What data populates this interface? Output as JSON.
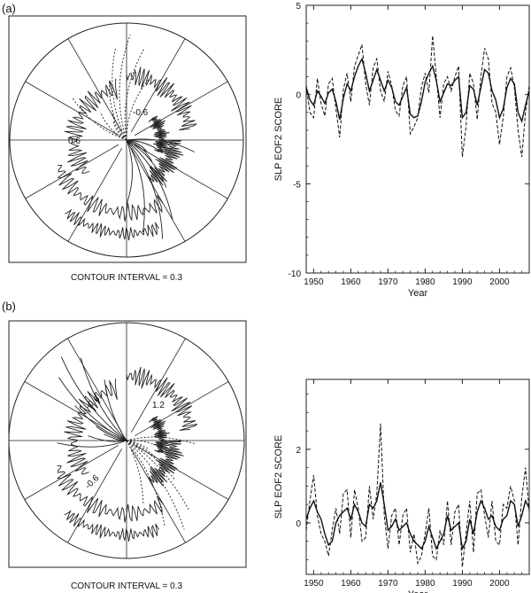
{
  "panels": [
    {
      "label": "(a)",
      "map": {
        "caption": "CONTOUR INTERVAL = 0.3",
        "contour_labels": [
          "0.6",
          "-0.6"
        ]
      },
      "chart_data": {
        "type": "line",
        "xlabel": "Year",
        "ylabel": "SLP EOF2 SCORE",
        "xlim": [
          1948,
          2008
        ],
        "ylim": [
          -10,
          5
        ],
        "xticks": [
          1950,
          1960,
          1970,
          1980,
          1990,
          2000
        ],
        "yticks": [
          -10,
          -5,
          0,
          5
        ],
        "series": [
          {
            "style": "solid",
            "x": [
              1948,
              1949,
              1950,
              1951,
              1952,
              1953,
              1954,
              1955,
              1956,
              1957,
              1958,
              1959,
              1960,
              1961,
              1962,
              1963,
              1964,
              1965,
              1966,
              1967,
              1968,
              1969,
              1970,
              1971,
              1972,
              1973,
              1974,
              1975,
              1976,
              1977,
              1978,
              1979,
              1980,
              1981,
              1982,
              1983,
              1984,
              1985,
              1986,
              1987,
              1988,
              1989,
              1990,
              1991,
              1992,
              1993,
              1994,
              1995,
              1996,
              1997,
              1998,
              1999,
              2000,
              2001,
              2002,
              2003,
              2004,
              2005,
              2006,
              2007,
              2008
            ],
            "y": [
              0.4,
              -0.3,
              -0.6,
              0.2,
              -0.1,
              -0.5,
              0.1,
              0.3,
              -0.4,
              -1.4,
              -0.2,
              0.6,
              0.2,
              1.0,
              1.6,
              2.0,
              1.2,
              0.2,
              0.8,
              1.4,
              0.8,
              0.2,
              0.8,
              0.4,
              -0.4,
              -0.6,
              -0.1,
              0.4,
              -1.1,
              -1.3,
              -1.2,
              -0.4,
              0.7,
              1.2,
              1.6,
              0.8,
              -0.4,
              0.1,
              0.6,
              0.5,
              0.8,
              1.0,
              -1.3,
              -1.0,
              0.5,
              0.3,
              -0.6,
              0.4,
              1.4,
              1.2,
              0.2,
              -0.3,
              -1.3,
              -0.8,
              0.4,
              0.9,
              0.6,
              -1.0,
              -1.5,
              -0.6,
              0.2
            ]
          },
          {
            "style": "dashed",
            "x": [
              1948,
              1949,
              1950,
              1951,
              1952,
              1953,
              1954,
              1955,
              1956,
              1957,
              1958,
              1959,
              1960,
              1961,
              1962,
              1963,
              1964,
              1965,
              1966,
              1967,
              1968,
              1969,
              1970,
              1971,
              1972,
              1973,
              1974,
              1975,
              1976,
              1977,
              1978,
              1979,
              1980,
              1981,
              1982,
              1983,
              1984,
              1985,
              1986,
              1987,
              1988,
              1989,
              1990,
              1991,
              1992,
              1993,
              1994,
              1995,
              1996,
              1997,
              1998,
              1999,
              2000,
              2001,
              2002,
              2003,
              2004,
              2005,
              2006,
              2007,
              2008
            ],
            "y": [
              0.5,
              -1.0,
              -1.3,
              0.9,
              -0.5,
              -1.2,
              0.6,
              0.9,
              -0.8,
              -2.4,
              0.3,
              1.2,
              -0.4,
              1.6,
              2.2,
              2.8,
              0.6,
              -0.6,
              1.5,
              2.0,
              0.2,
              -0.4,
              1.3,
              0.5,
              -0.9,
              -1.2,
              0.5,
              1.0,
              -2.2,
              -1.8,
              -1.3,
              0.4,
              1.2,
              0.1,
              3.3,
              1.0,
              -1.3,
              0.6,
              1.0,
              0.2,
              1.0,
              1.6,
              -3.5,
              -1.8,
              1.2,
              0.6,
              -1.4,
              1.0,
              2.6,
              2.0,
              -0.5,
              -1.0,
              -2.8,
              -1.3,
              1.0,
              1.5,
              0.4,
              -2.0,
              -3.5,
              -1.0,
              0.5
            ]
          }
        ]
      }
    },
    {
      "label": "(b)",
      "map": {
        "caption": "CONTOUR INTERVAL = 0.3",
        "contour_labels": [
          "-0.6",
          "-0.6",
          "1.2"
        ]
      },
      "chart_data": {
        "type": "line",
        "xlabel": "Year",
        "ylabel": "SLP EOF2 SCORE",
        "xlim": [
          1948,
          2008
        ],
        "ylim": [
          -1.4,
          3.9
        ],
        "xticks": [
          1950,
          1960,
          1970,
          1980,
          1990,
          2000
        ],
        "yticks": [
          0,
          2
        ],
        "series": [
          {
            "style": "solid",
            "x": [
              1948,
              1949,
              1950,
              1951,
              1952,
              1953,
              1954,
              1955,
              1956,
              1957,
              1958,
              1959,
              1960,
              1961,
              1962,
              1963,
              1964,
              1965,
              1966,
              1967,
              1968,
              1969,
              1970,
              1971,
              1972,
              1973,
              1974,
              1975,
              1976,
              1977,
              1978,
              1979,
              1980,
              1981,
              1982,
              1983,
              1984,
              1985,
              1986,
              1987,
              1988,
              1989,
              1990,
              1991,
              1992,
              1993,
              1994,
              1995,
              1996,
              1997,
              1998,
              1999,
              2000,
              2001,
              2002,
              2003,
              2004,
              2005,
              2006,
              2007,
              2008
            ],
            "y": [
              0.1,
              0.4,
              0.6,
              0.3,
              0.1,
              -0.3,
              -0.6,
              -0.5,
              0.0,
              0.2,
              0.3,
              0.4,
              0.1,
              0.5,
              0.3,
              0.0,
              -0.1,
              0.5,
              0.4,
              0.6,
              1.1,
              0.5,
              -0.2,
              -0.1,
              0.1,
              -0.2,
              -0.1,
              0.0,
              -0.3,
              -0.5,
              -0.6,
              -0.7,
              -0.5,
              -0.1,
              -0.4,
              -0.7,
              -0.5,
              -0.3,
              0.2,
              -0.2,
              -0.1,
              0.0,
              -0.7,
              -0.5,
              0.1,
              -0.3,
              0.3,
              0.6,
              0.4,
              0.1,
              0.2,
              -0.1,
              -0.2,
              0.1,
              0.2,
              0.6,
              0.5,
              -0.1,
              0.2,
              0.6,
              0.4
            ]
          },
          {
            "style": "dashed",
            "x": [
              1948,
              1949,
              1950,
              1951,
              1952,
              1953,
              1954,
              1955,
              1956,
              1957,
              1958,
              1959,
              1960,
              1961,
              1962,
              1963,
              1964,
              1965,
              1966,
              1967,
              1968,
              1969,
              1970,
              1971,
              1972,
              1973,
              1974,
              1975,
              1976,
              1977,
              1978,
              1979,
              1980,
              1981,
              1982,
              1983,
              1984,
              1985,
              1986,
              1987,
              1988,
              1989,
              1990,
              1991,
              1992,
              1993,
              1994,
              1995,
              1996,
              1997,
              1998,
              1999,
              2000,
              2001,
              2002,
              2003,
              2004,
              2005,
              2006,
              2007,
              2008
            ],
            "y": [
              -0.2,
              0.6,
              1.3,
              0.2,
              -0.3,
              -0.5,
              -0.9,
              -0.2,
              0.4,
              -0.3,
              0.8,
              0.9,
              -0.4,
              0.9,
              0.4,
              -0.5,
              -0.4,
              1.0,
              0.1,
              0.8,
              2.7,
              0.2,
              -0.7,
              0.2,
              0.4,
              -0.6,
              0.2,
              0.4,
              -0.8,
              -0.3,
              -1.1,
              -0.9,
              -0.3,
              0.4,
              -0.9,
              -1.0,
              -0.2,
              -0.6,
              0.6,
              -0.6,
              0.3,
              0.5,
              -1.2,
              -0.3,
              0.6,
              -0.8,
              0.8,
              0.9,
              0.2,
              -0.4,
              0.6,
              -0.5,
              -0.6,
              0.5,
              0.4,
              1.0,
              0.6,
              -0.6,
              0.7,
              1.5,
              0.3
            ]
          }
        ]
      }
    }
  ]
}
